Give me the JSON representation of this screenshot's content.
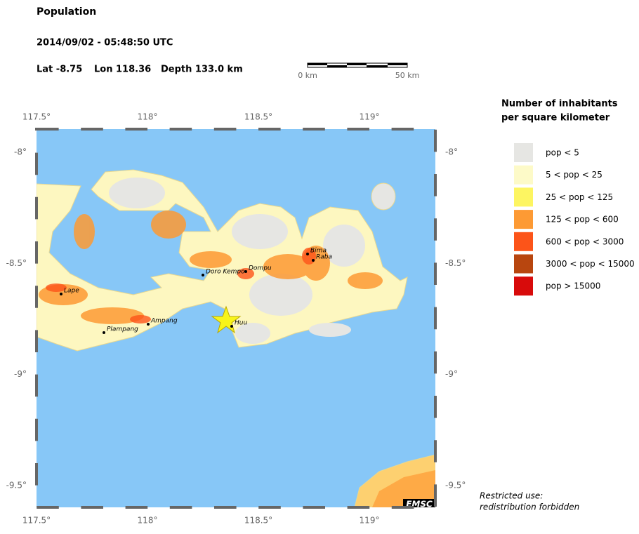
{
  "header": {
    "title": "Population",
    "datetime": "2014/09/02 - 05:48:50 UTC",
    "lat": "Lat -8.75",
    "lon": "Lon 118.36",
    "depth": "Depth 133.0 km"
  },
  "scale_bar": {
    "start": "0 km",
    "end": "50 km"
  },
  "map": {
    "lon_labels": [
      "117.5°",
      "118°",
      "118.5°",
      "119°"
    ],
    "lat_labels": [
      "-8°",
      "-8.5°",
      "-9°",
      "-9.5°"
    ],
    "places": [
      "Lape",
      "Plampang",
      "Ampang",
      "Doro Kempo",
      "Dompu",
      "Bima",
      "Raba",
      "Huu"
    ],
    "logo": "EMSC"
  },
  "legend": {
    "title_lines": [
      "Number of inhabitants",
      "per square kilometer"
    ],
    "items": [
      {
        "label": "pop < 5",
        "color": "#e6e6e3"
      },
      {
        "label": "5 < pop < 25",
        "color": "#fdfac8"
      },
      {
        "label": "25 < pop < 125",
        "color": "#fdf561"
      },
      {
        "label": "125 < pop < 600",
        "color": "#fd9a34"
      },
      {
        "label": "600 < pop < 3000",
        "color": "#fc5419"
      },
      {
        "label": "3000 < pop < 15000",
        "color": "#b8460f"
      },
      {
        "label": "pop > 15000",
        "color": "#d80b0b"
      }
    ]
  },
  "note": [
    "Restricted use:",
    "redistribution forbidden"
  ]
}
